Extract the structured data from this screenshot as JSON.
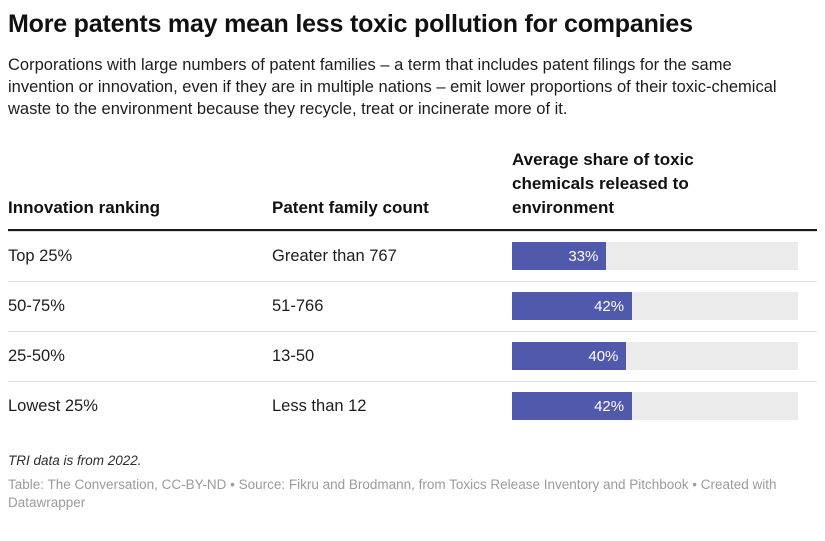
{
  "header": {
    "title": "More patents may mean less toxic pollution for companies",
    "subtitle": "Corporations with large numbers of patent families – a term that includes patent filings for the same invention or innovation, even if they are in multiple nations – emit lower proportions of their toxic-chemical waste to the environment because they recycle, treat or incinerate more of it."
  },
  "table": {
    "columns": {
      "col1": "Innovation ranking",
      "col2": "Patent family count",
      "col3": "Average share of toxic chemicals released to environment"
    },
    "rows": [
      {
        "ranking": "Top 25%",
        "patent_count": "Greater than 767",
        "share_label": "33%",
        "share_value": 33
      },
      {
        "ranking": "50-75%",
        "patent_count": "51-766",
        "share_label": "42%",
        "share_value": 42
      },
      {
        "ranking": "25-50%",
        "patent_count": "13-50",
        "share_label": "40%",
        "share_value": 40
      },
      {
        "ranking": "Lowest 25%",
        "patent_count": "Less than 12",
        "share_label": "42%",
        "share_value": 42
      }
    ]
  },
  "footer": {
    "note": "TRI data is from 2022.",
    "attribution": "Table: The Conversation, CC-BY-ND • Source: Fikru and Brodmann, from Toxics Release Inventory and Pitchbook • Created with Datawrapper"
  },
  "colors": {
    "bar_fill": "#5159ac",
    "bar_track": "#ebebeb",
    "bar_label_text": "#ffffff",
    "header_rule": "#1a1a1a",
    "row_divider": "#dddddd",
    "attribution_text": "#9b9b9b"
  },
  "chart_data": {
    "type": "bar",
    "title": "More patents may mean less toxic pollution for companies",
    "subtitle": "Corporations with large numbers of patent families – a term that includes patent filings for the same invention or innovation, even if they are in multiple nations – emit lower proportions of their toxic-chemical waste to the environment because they recycle, treat or incinerate more of it.",
    "categories": [
      "Top 25%",
      "50-75%",
      "25-50%",
      "Lowest 25%"
    ],
    "series": [
      {
        "name": "Average share of toxic chemicals released to environment",
        "values": [
          33,
          42,
          40,
          42
        ]
      },
      {
        "name": "Patent family count",
        "values": [
          "Greater than 767",
          "51-766",
          "13-50",
          "Less than 12"
        ]
      }
    ],
    "value_unit": "%",
    "xlabel": "Innovation ranking",
    "ylabel": "Average share of toxic chemicals released to environment",
    "xlim": [
      0,
      100
    ],
    "grid": false,
    "legend_position": "none",
    "orientation": "horizontal",
    "data_labels": [
      "33%",
      "42%",
      "40%",
      "42%"
    ],
    "note": "TRI data is from 2022.",
    "source": "Table: The Conversation, CC-BY-ND • Source: Fikru and Brodmann, from Toxics Release Inventory and Pitchbook • Created with Datawrapper"
  }
}
